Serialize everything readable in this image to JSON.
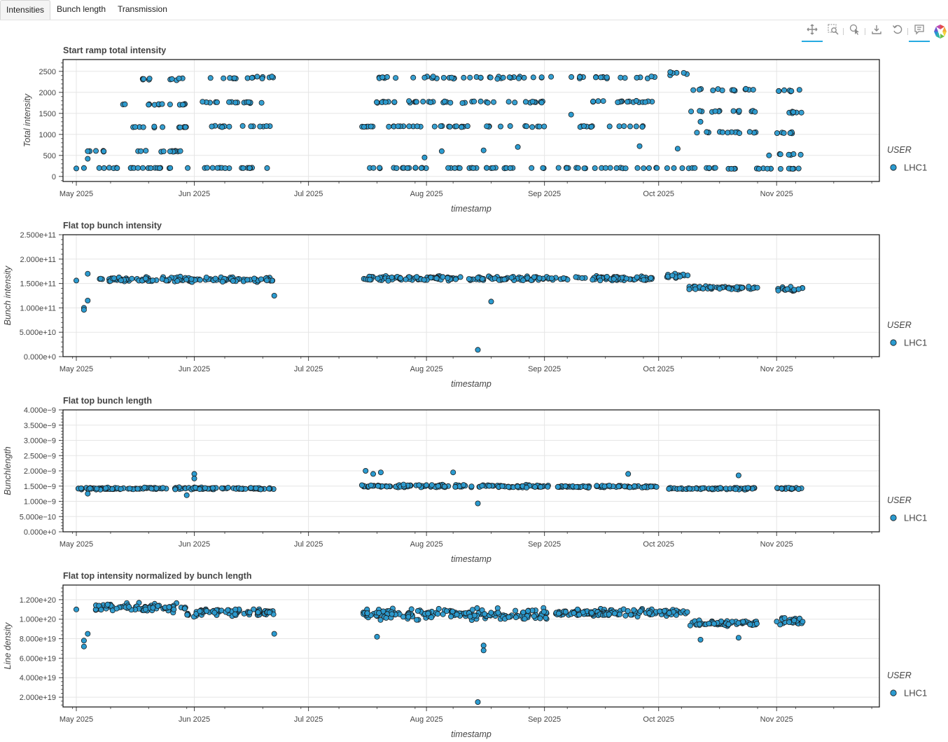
{
  "tabs": [
    {
      "label": "Intensities"
    },
    {
      "label": "Bunch length"
    },
    {
      "label": "Transmission"
    }
  ],
  "toolbar": [
    {
      "icon": "pan-icon"
    },
    {
      "icon": "box-zoom-icon"
    },
    {
      "icon": "hover-icon"
    },
    {
      "icon": "save-icon"
    },
    {
      "icon": "reset-icon"
    },
    {
      "icon": "tooltip-icon"
    },
    {
      "icon": "bokeh-logo-icon"
    }
  ],
  "colors": {
    "point_fill": "#2b9bd0",
    "point_line": "#1a1a1a",
    "grid": "#e5e5e5"
  },
  "chart_data": [
    {
      "type": "scatter",
      "title": "Start ramp total intensity",
      "xlabel": "timestamp",
      "ylabel": "Total intensity",
      "xlim": [
        117.5,
        332
      ],
      "ylim": [
        -120,
        2780
      ],
      "x_ticks": [
        {
          "label": "May 2025",
          "value": 121
        },
        {
          "label": "Jun 2025",
          "value": 152
        },
        {
          "label": "Jul 2025",
          "value": 182
        },
        {
          "label": "Aug 2025",
          "value": 213
        },
        {
          "label": "Sep 2025",
          "value": 244
        },
        {
          "label": "Oct 2025",
          "value": 274
        },
        {
          "label": "Nov 2025",
          "value": 305
        }
      ],
      "y_ticks": [
        {
          "label": "0",
          "value": 0
        },
        {
          "label": "500",
          "value": 500
        },
        {
          "label": "1000",
          "value": 1000
        },
        {
          "label": "1500",
          "value": 1500
        },
        {
          "label": "2000",
          "value": 2000
        },
        {
          "label": "2500",
          "value": 2500
        }
      ],
      "legend": {
        "title": "USER",
        "entries": [
          "LHC1"
        ]
      },
      "segments": [
        [
          124,
          151,
          200,
          10
        ],
        [
          153,
          173,
          200,
          10
        ],
        [
          196,
          245,
          200,
          10
        ],
        [
          247,
          274,
          200,
          10
        ],
        [
          276,
          290,
          200,
          10
        ],
        [
          290,
          304,
          185,
          10
        ],
        [
          306,
          312,
          185,
          10
        ],
        [
          124,
          131,
          600,
          20
        ],
        [
          135,
          150,
          600,
          20
        ],
        [
          133,
          150,
          1170,
          20
        ],
        [
          155,
          173,
          1190,
          20
        ],
        [
          196,
          245,
          1190,
          20
        ],
        [
          253,
          271,
          1190,
          20
        ],
        [
          133,
          150,
          1710,
          20
        ],
        [
          154,
          173,
          1760,
          30
        ],
        [
          196,
          245,
          1770,
          30
        ],
        [
          253,
          274,
          1780,
          30
        ],
        [
          138,
          150,
          2320,
          40
        ],
        [
          154,
          173,
          2350,
          40
        ],
        [
          196,
          246,
          2350,
          40
        ],
        [
          250,
          274,
          2360,
          40
        ],
        [
          276,
          282,
          2450,
          60
        ],
        [
          282,
          300,
          2060,
          30
        ],
        [
          282,
          300,
          1550,
          30
        ],
        [
          282,
          300,
          1050,
          30
        ],
        [
          305,
          312,
          2040,
          30
        ],
        [
          305,
          312,
          1520,
          30
        ],
        [
          305,
          312,
          1030,
          30
        ],
        [
          305,
          312,
          520,
          30
        ]
      ],
      "outliers": [
        [
          121,
          190
        ],
        [
          123,
          200
        ],
        [
          124,
          420
        ],
        [
          124,
          600
        ],
        [
          212.5,
          450
        ],
        [
          217,
          600
        ],
        [
          228,
          620
        ],
        [
          237,
          700
        ],
        [
          251,
          1470
        ],
        [
          269,
          720
        ],
        [
          279,
          660
        ],
        [
          285,
          1300
        ],
        [
          303,
          500
        ],
        [
          311,
          2060
        ]
      ],
      "point_count": 460
    },
    {
      "type": "scatter",
      "title": "Flat top bunch intensity",
      "xlabel": "timestamp",
      "ylabel": "Bunch intensity",
      "xlim": [
        117.5,
        332
      ],
      "ylim": [
        0,
        250000000000.0
      ],
      "x_ticks": [
        {
          "label": "May 2025",
          "value": 121
        },
        {
          "label": "Jun 2025",
          "value": 152
        },
        {
          "label": "Jul 2025",
          "value": 182
        },
        {
          "label": "Aug 2025",
          "value": 213
        },
        {
          "label": "Sep 2025",
          "value": 244
        },
        {
          "label": "Oct 2025",
          "value": 274
        },
        {
          "label": "Nov 2025",
          "value": 305
        }
      ],
      "y_ticks": [
        {
          "label": "0.000e+0",
          "value": 0
        },
        {
          "label": "5.000e+10",
          "value": 50000000000.0
        },
        {
          "label": "1.000e+11",
          "value": 100000000000.0
        },
        {
          "label": "1.500e+11",
          "value": 150000000000.0
        },
        {
          "label": "2.000e+11",
          "value": 200000000000.0
        },
        {
          "label": "2.500e+11",
          "value": 250000000000.0
        }
      ],
      "legend": {
        "title": "USER",
        "entries": [
          "LHC1"
        ]
      },
      "segments": [
        [
          127,
          173,
          158000000000.0,
          7000000000.0
        ],
        [
          196,
          274,
          160000000000.0,
          7000000000.0
        ],
        [
          276,
          282,
          165000000000.0,
          8000000000.0
        ],
        [
          282,
          300,
          141000000000.0,
          5000000000.0
        ],
        [
          305,
          312,
          138000000000.0,
          6000000000.0
        ]
      ],
      "outliers": [
        [
          121,
          156000000000.0
        ],
        [
          123,
          100000000000.0
        ],
        [
          123,
          96000000000.0
        ],
        [
          124,
          115000000000.0
        ],
        [
          124,
          170000000000.0
        ],
        [
          226.5,
          14000000000.0
        ],
        [
          230,
          113000000000.0
        ],
        [
          173,
          125000000000.0
        ]
      ],
      "point_count": 420
    },
    {
      "type": "scatter",
      "title": "Flat top bunch length",
      "xlabel": "timestamp",
      "ylabel": "Bunchlength",
      "xlim": [
        117.5,
        332
      ],
      "ylim": [
        0,
        4e-09
      ],
      "x_ticks": [
        {
          "label": "May 2025",
          "value": 121
        },
        {
          "label": "Jun 2025",
          "value": 152
        },
        {
          "label": "Jul 2025",
          "value": 182
        },
        {
          "label": "Aug 2025",
          "value": 213
        },
        {
          "label": "Sep 2025",
          "value": 244
        },
        {
          "label": "Oct 2025",
          "value": 274
        },
        {
          "label": "Nov 2025",
          "value": 305
        }
      ],
      "y_ticks": [
        {
          "label": "0.000e+0",
          "value": 0
        },
        {
          "label": "5.000e−10",
          "value": 5e-10
        },
        {
          "label": "1.000e−9",
          "value": 1e-09
        },
        {
          "label": "1.500e−9",
          "value": 1.5e-09
        },
        {
          "label": "2.000e−9",
          "value": 2e-09
        },
        {
          "label": "2.500e−9",
          "value": 2.5e-09
        },
        {
          "label": "3.000e−9",
          "value": 3e-09
        },
        {
          "label": "3.500e−9",
          "value": 3.5e-09
        },
        {
          "label": "4.000e−9",
          "value": 4e-09
        }
      ],
      "legend": {
        "title": "USER",
        "entries": [
          "LHC1"
        ]
      },
      "segments": [
        [
          121,
          173,
          1.42e-09,
          5e-11
        ],
        [
          196,
          245,
          1.5e-09,
          7e-11
        ],
        [
          247,
          274,
          1.48e-09,
          5e-11
        ],
        [
          276,
          300,
          1.42e-09,
          5e-11
        ],
        [
          305,
          312,
          1.42e-09,
          5e-11
        ]
      ],
      "outliers": [
        [
          152,
          1.9e-09
        ],
        [
          152,
          1.75e-09
        ],
        [
          197,
          2e-09
        ],
        [
          199,
          1.9e-09
        ],
        [
          201,
          1.95e-09
        ],
        [
          220,
          1.95e-09
        ],
        [
          226.5,
          9.3e-10
        ],
        [
          266,
          1.9e-09
        ],
        [
          295,
          1.85e-09
        ],
        [
          150,
          1.2e-09
        ],
        [
          124,
          1.25e-09
        ]
      ],
      "point_count": 420
    },
    {
      "type": "scatter",
      "title": "Flat top intensity normalized by bunch length",
      "xlabel": "timestamp",
      "ylabel": "Line density",
      "xlim": [
        117.5,
        332
      ],
      "ylim": [
        1e+19,
        1.35e+20
      ],
      "x_ticks": [
        {
          "label": "May 2025",
          "value": 121
        },
        {
          "label": "Jun 2025",
          "value": 152
        },
        {
          "label": "Jul 2025",
          "value": 182
        },
        {
          "label": "Aug 2025",
          "value": 213
        },
        {
          "label": "Sep 2025",
          "value": 244
        },
        {
          "label": "Oct 2025",
          "value": 274
        },
        {
          "label": "Nov 2025",
          "value": 305
        }
      ],
      "y_ticks": [
        {
          "label": "2.000e+19",
          "value": 2e+19
        },
        {
          "label": "4.000e+19",
          "value": 4e+19
        },
        {
          "label": "6.000e+19",
          "value": 6e+19
        },
        {
          "label": "8.000e+19",
          "value": 8e+19
        },
        {
          "label": "1.000e+20",
          "value": 1e+20
        },
        {
          "label": "1.200e+20",
          "value": 1.2e+20
        }
      ],
      "legend": {
        "title": "USER",
        "entries": [
          "LHC1"
        ]
      },
      "segments": [
        [
          126,
          150,
          1.12e+20,
          6e+18
        ],
        [
          150,
          173,
          1.07e+20,
          6e+18
        ],
        [
          196,
          245,
          1.05e+20,
          8e+18
        ],
        [
          247,
          282,
          1.07e+20,
          5e+18
        ],
        [
          282,
          300,
          9.6e+19,
          4e+18
        ],
        [
          305,
          312,
          9.8e+19,
          5e+18
        ]
      ],
      "outliers": [
        [
          121,
          1.1e+20
        ],
        [
          123,
          7.8e+19
        ],
        [
          123,
          7.2e+19
        ],
        [
          124,
          8.5e+19
        ],
        [
          173,
          8.5e+19
        ],
        [
          226.5,
          1.5e+19
        ],
        [
          228,
          7.3e+19
        ],
        [
          228,
          6.8e+19
        ],
        [
          200,
          8.2e+19
        ],
        [
          285,
          7.9e+19
        ],
        [
          295,
          8.1e+19
        ]
      ],
      "point_count": 520
    }
  ]
}
